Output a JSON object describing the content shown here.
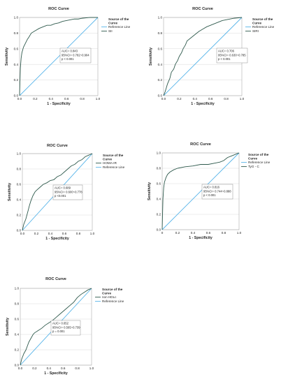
{
  "colors": {
    "roc": "#2f5a4d",
    "reference": "#56b4e9"
  },
  "chart_data": [
    {
      "type": "line",
      "title": "ROC Curve",
      "xlabel": "1 - Specificity",
      "ylabel": "Sensitivity",
      "xlim": [
        0,
        1
      ],
      "ylim": [
        0,
        1
      ],
      "xticks": [
        "0.0",
        "0.2",
        "0.4",
        "0.6",
        "0.8",
        "1.0"
      ],
      "yticks": [
        "0.0",
        "0.2",
        "0.4",
        "0.6",
        "0.8",
        "1.0"
      ],
      "grid": true,
      "legend": {
        "title": "Source of the Curve",
        "position": "right",
        "entries": [
          "Reference Line",
          "SII"
        ]
      },
      "annotation": [
        "AUC= 0.843",
        "95%CI= 0.782~0.904",
        "p < 0.001"
      ],
      "series": [
        {
          "name": "SII",
          "x": [
            0,
            0.01,
            0.02,
            0.03,
            0.05,
            0.07,
            0.1,
            0.12,
            0.15,
            0.2,
            0.25,
            0.3,
            0.35,
            0.4,
            0.45,
            0.5,
            0.55,
            0.6,
            0.65,
            0.7,
            0.75,
            0.8,
            0.9,
            1.0
          ],
          "y": [
            0,
            0.35,
            0.48,
            0.55,
            0.62,
            0.66,
            0.72,
            0.75,
            0.8,
            0.83,
            0.86,
            0.88,
            0.9,
            0.9,
            0.92,
            0.93,
            0.95,
            0.96,
            0.97,
            0.98,
            0.98,
            0.99,
            1.0,
            1.0
          ]
        },
        {
          "name": "Reference Line",
          "x": [
            0,
            1
          ],
          "y": [
            0,
            1
          ]
        }
      ]
    },
    {
      "type": "line",
      "title": "ROC Curve",
      "xlabel": "1 - Specificity",
      "ylabel": "Sensitivity",
      "xlim": [
        0,
        1
      ],
      "ylim": [
        0,
        1
      ],
      "xticks": [
        "0.0",
        "0.2",
        "0.4",
        "0.6",
        "0.8",
        "1.0"
      ],
      "yticks": [
        "0.0",
        "0.2",
        "0.4",
        "0.6",
        "0.8",
        "1.0"
      ],
      "grid": true,
      "legend": {
        "title": "Source of the Curve",
        "position": "right",
        "entries": [
          "Reference Line",
          "SIRI"
        ]
      },
      "annotation": [
        "AUC= 0.706",
        "95%CI= 0.630~0.785",
        "p < 0.001"
      ],
      "series": [
        {
          "name": "SIRI",
          "x": [
            0,
            0.02,
            0.05,
            0.08,
            0.1,
            0.13,
            0.15,
            0.18,
            0.2,
            0.23,
            0.25,
            0.28,
            0.3,
            0.35,
            0.4,
            0.45,
            0.5,
            0.55,
            0.6,
            0.65,
            0.7,
            0.75,
            0.8,
            0.85,
            0.9,
            1.0
          ],
          "y": [
            0,
            0.05,
            0.15,
            0.22,
            0.3,
            0.34,
            0.4,
            0.45,
            0.5,
            0.55,
            0.6,
            0.65,
            0.7,
            0.74,
            0.78,
            0.82,
            0.85,
            0.88,
            0.9,
            0.92,
            0.94,
            0.96,
            0.97,
            0.98,
            0.99,
            1.0
          ]
        },
        {
          "name": "Reference Line",
          "x": [
            0,
            1
          ],
          "y": [
            0,
            1
          ]
        }
      ]
    },
    {
      "type": "line",
      "title": "ROC Curve",
      "xlabel": "1 - Specificity",
      "ylabel": "Sensitivity",
      "xlim": [
        0,
        1
      ],
      "ylim": [
        0,
        1
      ],
      "xticks": [
        "0.0",
        "0.2",
        "0.4",
        "0.6",
        "0.8",
        "1.0"
      ],
      "yticks": [
        "0.0",
        "0.2",
        "0.4",
        "0.6",
        "0.8",
        "1.0"
      ],
      "grid": true,
      "legend": {
        "title": "Source of the Curve",
        "position": "right",
        "entries": [
          "HOMA-IR",
          "Reference Line"
        ]
      },
      "annotation": [
        "AUC= 0.689",
        "95%CI= 0.600~0.778",
        "p <0.001"
      ],
      "series": [
        {
          "name": "HOMA-IR",
          "x": [
            0,
            0.02,
            0.05,
            0.08,
            0.1,
            0.12,
            0.15,
            0.18,
            0.2,
            0.25,
            0.3,
            0.35,
            0.4,
            0.45,
            0.5,
            0.55,
            0.6,
            0.65,
            0.7,
            0.75,
            0.8,
            0.85,
            0.9,
            0.95,
            1.0
          ],
          "y": [
            0,
            0.08,
            0.15,
            0.25,
            0.32,
            0.38,
            0.45,
            0.5,
            0.52,
            0.56,
            0.6,
            0.62,
            0.65,
            0.66,
            0.7,
            0.72,
            0.76,
            0.8,
            0.84,
            0.86,
            0.9,
            0.92,
            0.96,
            0.98,
            1.0
          ]
        },
        {
          "name": "Reference Line",
          "x": [
            0,
            1
          ],
          "y": [
            0,
            1
          ]
        }
      ]
    },
    {
      "type": "line",
      "title": "ROC Curve",
      "xlabel": "1 - Specificity",
      "ylabel": "Sensitivity",
      "xlim": [
        0,
        1
      ],
      "ylim": [
        0,
        1
      ],
      "xticks": [
        "0",
        "0.2",
        "0.4",
        "0.6",
        "0.8",
        "1.0"
      ],
      "yticks": [
        "0.0",
        "0.2",
        "0.4",
        "0.6",
        "0.8",
        "1.0"
      ],
      "grid": true,
      "legend": {
        "title": "Source of the Curve",
        "position": "right",
        "entries": [
          "Reference Line",
          "TyG - C"
        ]
      },
      "annotation": [
        "AUC= 0.816",
        "95%CI= 0.744~0.888",
        "p < 0.001"
      ],
      "series": [
        {
          "name": "TyG - C",
          "x": [
            0,
            0.005,
            0.01,
            0.02,
            0.03,
            0.05,
            0.07,
            0.1,
            0.15,
            0.2,
            0.3,
            0.4,
            0.5,
            0.6,
            0.7,
            0.75,
            0.8,
            0.85,
            0.9,
            0.95,
            1.0
          ],
          "y": [
            0,
            0.2,
            0.4,
            0.55,
            0.62,
            0.68,
            0.72,
            0.75,
            0.78,
            0.8,
            0.82,
            0.83,
            0.85,
            0.85,
            0.87,
            0.88,
            0.9,
            0.94,
            0.96,
            0.98,
            1.0
          ]
        },
        {
          "name": "Reference Line",
          "x": [
            0,
            1
          ],
          "y": [
            0,
            1
          ]
        }
      ]
    },
    {
      "type": "line",
      "title": "ROC Curve",
      "xlabel": "1 - Specificity",
      "ylabel": "Sensitivity",
      "xlim": [
        0,
        1
      ],
      "ylim": [
        0,
        1
      ],
      "xticks": [
        "0.0",
        "0.2",
        "0.4",
        "0.6",
        "0.8",
        "1.0"
      ],
      "yticks": [
        "0.0",
        "0.2",
        "0.4",
        "0.6",
        "0.8",
        "1.0"
      ],
      "grid": true,
      "legend": {
        "title": "Source of the Curve",
        "position": "right",
        "entries": [
          "non HDLc",
          "Reference Line"
        ]
      },
      "annotation": [
        "AUC= 0.652",
        "95%CI= 0.565~0.739",
        "p = 0.001"
      ],
      "series": [
        {
          "name": "non HDLc",
          "x": [
            0,
            0.02,
            0.05,
            0.08,
            0.1,
            0.12,
            0.15,
            0.18,
            0.2,
            0.25,
            0.3,
            0.35,
            0.4,
            0.45,
            0.5,
            0.55,
            0.6,
            0.65,
            0.7,
            0.75,
            0.8,
            0.85,
            0.9,
            0.95,
            1.0
          ],
          "y": [
            0,
            0.08,
            0.15,
            0.2,
            0.25,
            0.3,
            0.35,
            0.4,
            0.42,
            0.45,
            0.48,
            0.52,
            0.55,
            0.58,
            0.62,
            0.66,
            0.7,
            0.74,
            0.78,
            0.82,
            0.88,
            0.92,
            0.95,
            0.98,
            1.0
          ]
        },
        {
          "name": "Reference Line",
          "x": [
            0,
            1
          ],
          "y": [
            0,
            1
          ]
        }
      ]
    }
  ]
}
